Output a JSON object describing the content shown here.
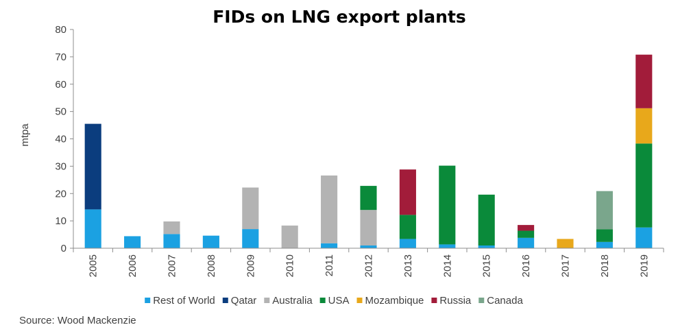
{
  "chart_data": {
    "type": "bar",
    "stacked": true,
    "title": "FIDs on LNG export plants",
    "ylabel": "mtpa",
    "xlabel": "",
    "ylim": [
      0,
      80
    ],
    "yticks": [
      0,
      10,
      20,
      30,
      40,
      50,
      60,
      70,
      80
    ],
    "grid": false,
    "legend_position": "bottom",
    "categories": [
      "2005",
      "2006",
      "2007",
      "2008",
      "2009",
      "2010",
      "2011",
      "2012",
      "2013",
      "2014",
      "2015",
      "2016",
      "2017",
      "2018",
      "2019"
    ],
    "series": [
      {
        "name": "Rest of World",
        "color": "#1ba1e2",
        "values": [
          14.2,
          4.4,
          5.2,
          4.6,
          7.0,
          0,
          1.8,
          1.0,
          3.4,
          1.4,
          1.0,
          3.8,
          0,
          2.3,
          7.6
        ]
      },
      {
        "name": "Qatar",
        "color": "#0b3d7e",
        "values": [
          31.3,
          0,
          0,
          0,
          0,
          0,
          0,
          0,
          0,
          0,
          0,
          0,
          0,
          0,
          0
        ]
      },
      {
        "name": "Australia",
        "color": "#b3b3b3",
        "values": [
          0,
          0,
          4.6,
          0,
          15.2,
          8.3,
          24.8,
          13.0,
          0,
          0,
          0,
          0,
          0,
          0,
          0
        ]
      },
      {
        "name": "USA",
        "color": "#0a8a3a",
        "values": [
          0,
          0,
          0,
          0,
          0,
          0,
          0,
          8.8,
          8.8,
          28.8,
          18.6,
          2.6,
          0,
          4.6,
          30.7
        ]
      },
      {
        "name": "Mozambique",
        "color": "#e8a81b",
        "values": [
          0,
          0,
          0,
          0,
          0,
          0,
          0,
          0,
          0,
          0,
          0,
          0,
          3.4,
          0,
          12.9
        ]
      },
      {
        "name": "Russia",
        "color": "#a21c3a",
        "values": [
          0,
          0,
          0,
          0,
          0,
          0,
          0,
          0,
          16.6,
          0,
          0,
          2.1,
          0,
          0,
          19.6
        ]
      },
      {
        "name": "Canada",
        "color": "#7aa68c",
        "values": [
          0,
          0,
          0,
          0,
          0,
          0,
          0,
          0,
          0,
          0,
          0,
          0,
          0,
          14.0,
          0
        ]
      }
    ]
  },
  "source": "Source: Wood Mackenzie"
}
